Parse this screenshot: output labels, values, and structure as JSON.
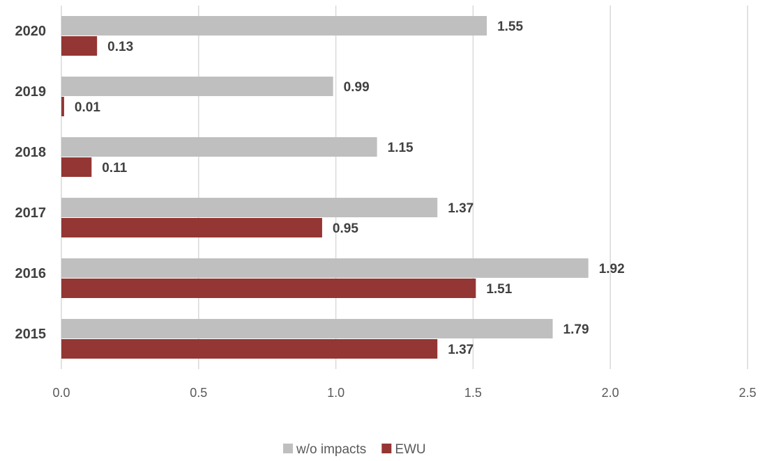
{
  "chart_data": {
    "type": "bar",
    "orientation": "horizontal",
    "categories": [
      "2020",
      "2019",
      "2018",
      "2017",
      "2016",
      "2015"
    ],
    "series": [
      {
        "name": "w/o impacts",
        "color": "#bfbfbf",
        "values": [
          1.55,
          0.99,
          1.15,
          1.37,
          1.92,
          1.79
        ],
        "labels": [
          "1.55",
          "0.99",
          "1.15",
          "1.37",
          "1.92",
          "1.79"
        ]
      },
      {
        "name": "EWU",
        "color": "#943634",
        "values": [
          0.13,
          0.01,
          0.11,
          0.95,
          1.51,
          1.37
        ],
        "labels": [
          "0.13",
          "0.01",
          "0.11",
          "0.95",
          "1.51",
          "1.37"
        ]
      }
    ],
    "x_ticks": [
      "0.0",
      "0.5",
      "1.0",
      "1.5",
      "2.0",
      "2.5"
    ],
    "xlim": [
      0,
      2.5
    ],
    "grid": true,
    "legend": "bottom-center"
  }
}
